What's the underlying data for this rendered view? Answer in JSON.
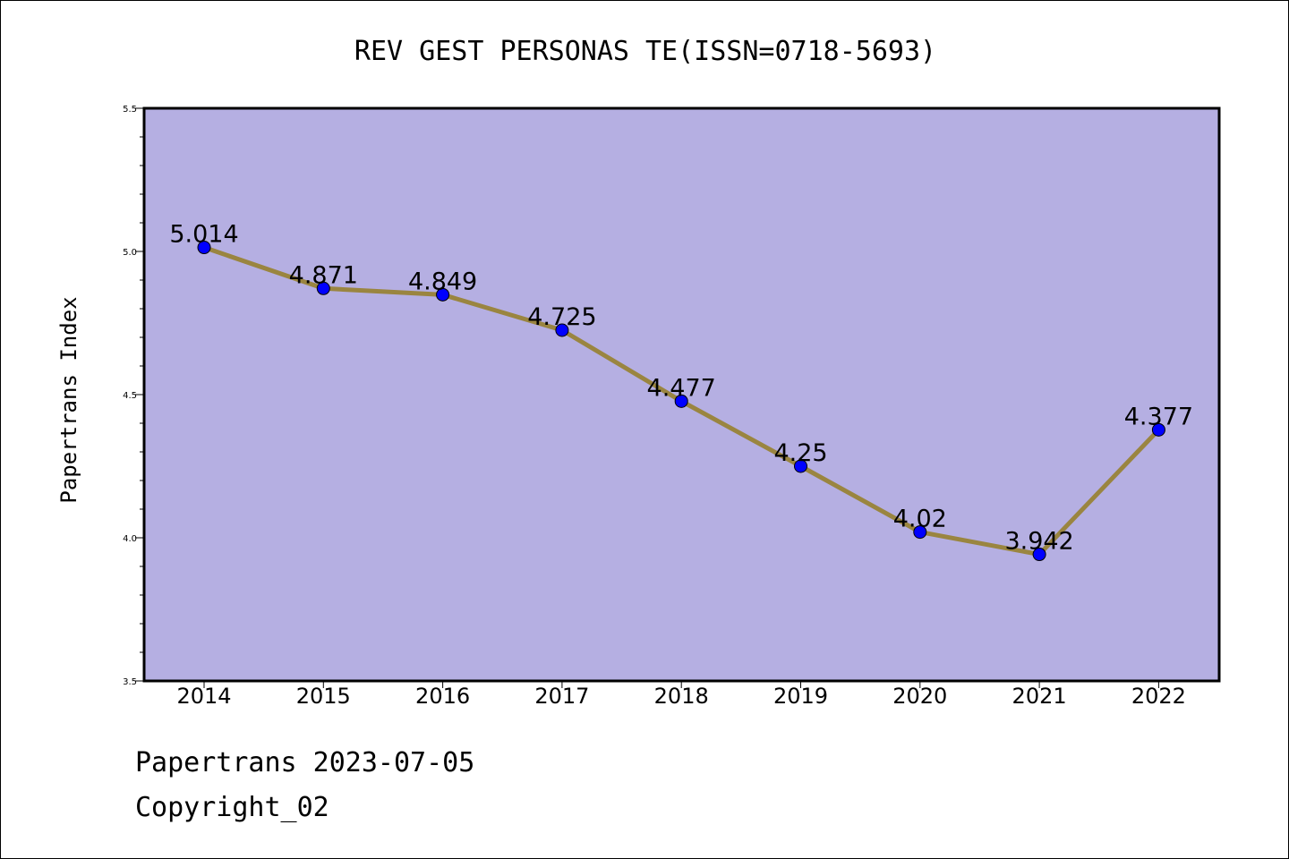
{
  "chart_data": {
    "type": "line",
    "title": "REV GEST PERSONAS TE(ISSN=0718-5693)",
    "ylabel": "Papertrans Index",
    "xlabel": "",
    "categories": [
      "2014",
      "2015",
      "2016",
      "2017",
      "2018",
      "2019",
      "2020",
      "2021",
      "2022"
    ],
    "series": [
      {
        "values": [
          5.014,
          4.871,
          4.849,
          4.725,
          4.477,
          4.25,
          4.02,
          3.942,
          4.377
        ],
        "data_labels": [
          "5.014",
          "4.871",
          "4.849",
          "4.725",
          "4.477",
          "4.25",
          "4.02",
          "3.942",
          "4.377"
        ]
      }
    ],
    "ylim": [
      3.5,
      5.5
    ],
    "yticks": [
      "3.5",
      "4.0",
      "4.5",
      "5.0",
      "5.5"
    ],
    "grid": false,
    "colors": {
      "plot_background": "#b5afe2",
      "line": "#9a8540",
      "marker": "#0000ff"
    }
  },
  "footer": {
    "line1": "Papertrans 2023-07-05",
    "line2": "Copyright_02"
  }
}
